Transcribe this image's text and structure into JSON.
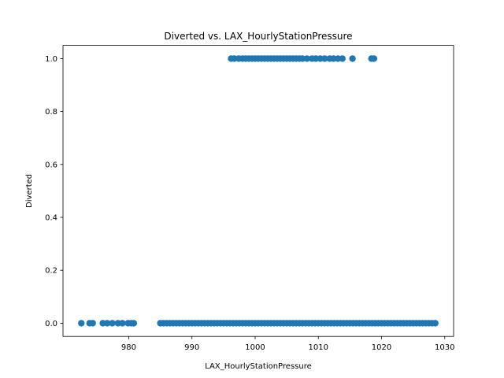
{
  "chart_data": {
    "type": "scatter",
    "title": "Diverted vs. LAX_HourlyStationPressure",
    "xlabel": "LAX_HourlyStationPressure",
    "ylabel": "Diverted",
    "xlim": [
      969.6,
      1031.4
    ],
    "ylim": [
      -0.05,
      1.05
    ],
    "xticks": [
      980,
      990,
      1000,
      1010,
      1020,
      1030
    ],
    "yticks": [
      0.0,
      0.2,
      0.4,
      0.6,
      0.8,
      1.0
    ],
    "xtick_labels": [
      "980",
      "990",
      "1000",
      "1010",
      "1020",
      "1030"
    ],
    "ytick_labels": [
      "0.0",
      "0.2",
      "0.4",
      "0.6",
      "0.8",
      "1.0"
    ],
    "grid": false,
    "marker_color": "#1f77b4",
    "series": [
      {
        "points": [
          {
            "x": 972.5,
            "y": 0
          },
          {
            "x": 973.8,
            "y": 0
          },
          {
            "x": 974.3,
            "y": 0
          },
          {
            "x": 975.9,
            "y": 0
          },
          {
            "x": 976.6,
            "y": 0
          },
          {
            "x": 977.4,
            "y": 0
          },
          {
            "x": 978.3,
            "y": 0
          },
          {
            "x": 979.0,
            "y": 0
          },
          {
            "x": 979.9,
            "y": 0
          },
          {
            "x": 980.4,
            "y": 0
          },
          {
            "x": 980.8,
            "y": 0
          },
          {
            "x": 985.0,
            "y": 0
          },
          {
            "x": 985.5,
            "y": 0
          },
          {
            "x": 986.0,
            "y": 0
          },
          {
            "x": 986.5,
            "y": 0
          },
          {
            "x": 987.0,
            "y": 0
          },
          {
            "x": 987.5,
            "y": 0
          },
          {
            "x": 988.0,
            "y": 0
          },
          {
            "x": 988.5,
            "y": 0
          },
          {
            "x": 989.0,
            "y": 0
          },
          {
            "x": 989.5,
            "y": 0
          },
          {
            "x": 990.0,
            "y": 0
          },
          {
            "x": 990.5,
            "y": 0
          },
          {
            "x": 991.0,
            "y": 0
          },
          {
            "x": 991.5,
            "y": 0
          },
          {
            "x": 992.0,
            "y": 0
          },
          {
            "x": 992.5,
            "y": 0
          },
          {
            "x": 993.0,
            "y": 0
          },
          {
            "x": 993.5,
            "y": 0
          },
          {
            "x": 994.0,
            "y": 0
          },
          {
            "x": 994.5,
            "y": 0
          },
          {
            "x": 995.0,
            "y": 0
          },
          {
            "x": 995.5,
            "y": 0
          },
          {
            "x": 996.0,
            "y": 0
          },
          {
            "x": 996.5,
            "y": 0
          },
          {
            "x": 997.0,
            "y": 0
          },
          {
            "x": 997.5,
            "y": 0
          },
          {
            "x": 998.0,
            "y": 0
          },
          {
            "x": 998.5,
            "y": 0
          },
          {
            "x": 999.0,
            "y": 0
          },
          {
            "x": 999.5,
            "y": 0
          },
          {
            "x": 1000.0,
            "y": 0
          },
          {
            "x": 1000.5,
            "y": 0
          },
          {
            "x": 1001.0,
            "y": 0
          },
          {
            "x": 1001.5,
            "y": 0
          },
          {
            "x": 1002.0,
            "y": 0
          },
          {
            "x": 1002.5,
            "y": 0
          },
          {
            "x": 1003.0,
            "y": 0
          },
          {
            "x": 1003.5,
            "y": 0
          },
          {
            "x": 1004.0,
            "y": 0
          },
          {
            "x": 1004.5,
            "y": 0
          },
          {
            "x": 1005.0,
            "y": 0
          },
          {
            "x": 1005.5,
            "y": 0
          },
          {
            "x": 1006.0,
            "y": 0
          },
          {
            "x": 1006.5,
            "y": 0
          },
          {
            "x": 1007.0,
            "y": 0
          },
          {
            "x": 1007.5,
            "y": 0
          },
          {
            "x": 1008.0,
            "y": 0
          },
          {
            "x": 1008.5,
            "y": 0
          },
          {
            "x": 1009.0,
            "y": 0
          },
          {
            "x": 1009.5,
            "y": 0
          },
          {
            "x": 1010.0,
            "y": 0
          },
          {
            "x": 1010.5,
            "y": 0
          },
          {
            "x": 1011.0,
            "y": 0
          },
          {
            "x": 1011.5,
            "y": 0
          },
          {
            "x": 1012.0,
            "y": 0
          },
          {
            "x": 1012.5,
            "y": 0
          },
          {
            "x": 1013.0,
            "y": 0
          },
          {
            "x": 1013.5,
            "y": 0
          },
          {
            "x": 1014.0,
            "y": 0
          },
          {
            "x": 1014.5,
            "y": 0
          },
          {
            "x": 1015.0,
            "y": 0
          },
          {
            "x": 1015.5,
            "y": 0
          },
          {
            "x": 1016.0,
            "y": 0
          },
          {
            "x": 1016.5,
            "y": 0
          },
          {
            "x": 1017.0,
            "y": 0
          },
          {
            "x": 1017.5,
            "y": 0
          },
          {
            "x": 1018.0,
            "y": 0
          },
          {
            "x": 1018.5,
            "y": 0
          },
          {
            "x": 1019.0,
            "y": 0
          },
          {
            "x": 1019.5,
            "y": 0
          },
          {
            "x": 1020.0,
            "y": 0
          },
          {
            "x": 1020.5,
            "y": 0
          },
          {
            "x": 1021.0,
            "y": 0
          },
          {
            "x": 1021.5,
            "y": 0
          },
          {
            "x": 1022.0,
            "y": 0
          },
          {
            "x": 1022.5,
            "y": 0
          },
          {
            "x": 1023.0,
            "y": 0
          },
          {
            "x": 1023.5,
            "y": 0
          },
          {
            "x": 1024.0,
            "y": 0
          },
          {
            "x": 1024.5,
            "y": 0
          },
          {
            "x": 1025.0,
            "y": 0
          },
          {
            "x": 1025.5,
            "y": 0
          },
          {
            "x": 1026.0,
            "y": 0
          },
          {
            "x": 1026.5,
            "y": 0
          },
          {
            "x": 1027.0,
            "y": 0
          },
          {
            "x": 1027.5,
            "y": 0
          },
          {
            "x": 1028.0,
            "y": 0
          },
          {
            "x": 1028.5,
            "y": 0
          },
          {
            "x": 996.2,
            "y": 1
          },
          {
            "x": 996.7,
            "y": 1
          },
          {
            "x": 997.4,
            "y": 1
          },
          {
            "x": 998.0,
            "y": 1
          },
          {
            "x": 998.5,
            "y": 1
          },
          {
            "x": 999.0,
            "y": 1
          },
          {
            "x": 999.5,
            "y": 1
          },
          {
            "x": 1000.0,
            "y": 1
          },
          {
            "x": 1000.5,
            "y": 1
          },
          {
            "x": 1001.0,
            "y": 1
          },
          {
            "x": 1001.5,
            "y": 1
          },
          {
            "x": 1002.0,
            "y": 1
          },
          {
            "x": 1002.5,
            "y": 1
          },
          {
            "x": 1003.0,
            "y": 1
          },
          {
            "x": 1003.5,
            "y": 1
          },
          {
            "x": 1004.0,
            "y": 1
          },
          {
            "x": 1004.5,
            "y": 1
          },
          {
            "x": 1005.0,
            "y": 1
          },
          {
            "x": 1005.5,
            "y": 1
          },
          {
            "x": 1006.0,
            "y": 1
          },
          {
            "x": 1006.5,
            "y": 1
          },
          {
            "x": 1007.0,
            "y": 1
          },
          {
            "x": 1007.5,
            "y": 1
          },
          {
            "x": 1008.2,
            "y": 1
          },
          {
            "x": 1009.0,
            "y": 1
          },
          {
            "x": 1009.6,
            "y": 1
          },
          {
            "x": 1010.3,
            "y": 1
          },
          {
            "x": 1011.0,
            "y": 1
          },
          {
            "x": 1011.8,
            "y": 1
          },
          {
            "x": 1012.4,
            "y": 1
          },
          {
            "x": 1013.1,
            "y": 1
          },
          {
            "x": 1013.8,
            "y": 1
          },
          {
            "x": 1015.4,
            "y": 1
          },
          {
            "x": 1018.4,
            "y": 1
          },
          {
            "x": 1018.8,
            "y": 1
          }
        ]
      }
    ]
  }
}
